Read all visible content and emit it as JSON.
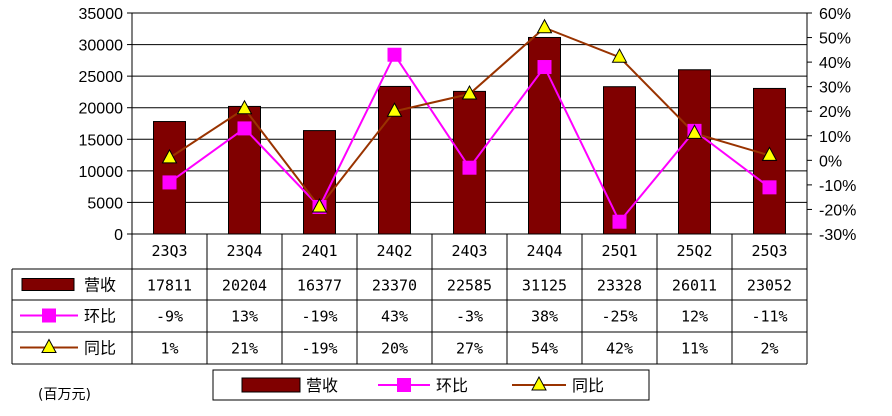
{
  "chart_data": {
    "type": "bar",
    "categories": [
      "23Q3",
      "23Q4",
      "24Q1",
      "24Q2",
      "24Q3",
      "24Q4",
      "25Q1",
      "25Q2",
      "25Q3"
    ],
    "series": [
      {
        "name": "营收",
        "type": "bar",
        "axis": "left",
        "color": "#800000",
        "values": [
          17811,
          20204,
          16377,
          23370,
          22585,
          31125,
          23328,
          26011,
          23052
        ],
        "labels": [
          "17811",
          "20204",
          "16377",
          "23370",
          "22585",
          "31125",
          "23328",
          "26011",
          "23052"
        ]
      },
      {
        "name": "环比",
        "type": "line",
        "axis": "right",
        "marker": "square",
        "color": "#FF00FF",
        "values": [
          -9,
          13,
          -19,
          43,
          -3,
          38,
          -25,
          12,
          -11
        ],
        "labels": [
          "-9%",
          "13%",
          "-19%",
          "43%",
          "-3%",
          "38%",
          "-25%",
          "12%",
          "-11%"
        ]
      },
      {
        "name": "同比",
        "type": "line",
        "axis": "right",
        "marker": "triangle",
        "color": "#993300",
        "values": [
          1,
          21,
          -19,
          20,
          27,
          54,
          42,
          11,
          2
        ],
        "labels": [
          "1%",
          "21%",
          "-19%",
          "20%",
          "27%",
          "54%",
          "42%",
          "11%",
          "2%"
        ]
      }
    ],
    "ylim_left": [
      0,
      35000
    ],
    "yticks_left": [
      "35000",
      "30000",
      "25000",
      "20000",
      "15000",
      "10000",
      "5000",
      "0"
    ],
    "ylim_right": [
      -30,
      60
    ],
    "yticks_right": [
      "60%",
      "50%",
      "40%",
      "30%",
      "20%",
      "10%",
      "0%",
      "-10%",
      "-20%",
      "-30%"
    ],
    "grid": true,
    "legend": "bottom",
    "unit": "(百万元)"
  }
}
